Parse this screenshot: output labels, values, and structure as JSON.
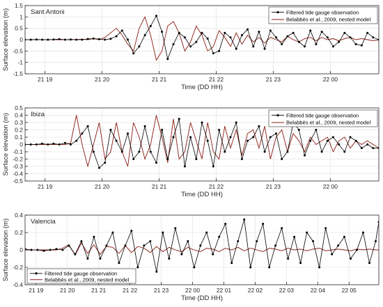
{
  "chart_data": [
    {
      "type": "line",
      "station": "Sant Antoni",
      "xlabel": "Time (DD HH)",
      "ylabel": "Surface elevation (m)",
      "xlim": [
        0,
        6.2
      ],
      "ylim": [
        -1.5,
        1.5
      ],
      "yticks": [
        -1.5,
        -1,
        -0.5,
        0,
        0.5,
        1,
        1.5
      ],
      "ytick_labels": [
        "-1.5",
        "-1",
        "-0.5",
        "0",
        "0.5",
        "1",
        "1.5"
      ],
      "xticks": [
        0.35,
        1.35,
        2.35,
        3.35,
        4.35,
        5.35
      ],
      "xtick_labels": [
        "21 19",
        "21 20",
        "21 21",
        "21 22",
        "21 23",
        "22 00"
      ],
      "legend_position": "top-right",
      "series": [
        {
          "name": "Filtered tide gauge observation",
          "style": "obs",
          "color": "#000000",
          "x": [
            0.0,
            0.1,
            0.2,
            0.3,
            0.4,
            0.5,
            0.6,
            0.7,
            0.8,
            0.9,
            1.0,
            1.1,
            1.2,
            1.3,
            1.4,
            1.5,
            1.6,
            1.7,
            1.8,
            1.9,
            2.0,
            2.1,
            2.2,
            2.3,
            2.4,
            2.5,
            2.6,
            2.7,
            2.8,
            2.9,
            3.0,
            3.1,
            3.2,
            3.3,
            3.4,
            3.5,
            3.6,
            3.7,
            3.8,
            3.9,
            4.0,
            4.1,
            4.2,
            4.3,
            4.4,
            4.5,
            4.6,
            4.7,
            4.8,
            4.9,
            5.0,
            5.1,
            5.2,
            5.3,
            5.4,
            5.5,
            5.6,
            5.7,
            5.8,
            5.9,
            6.0,
            6.1,
            6.2
          ],
          "y": [
            0.0,
            0.0,
            0.01,
            0.0,
            0.0,
            0.01,
            0.02,
            0.0,
            0.01,
            0.0,
            0.0,
            0.03,
            0.05,
            0.02,
            0.0,
            0.04,
            0.15,
            0.4,
            0.0,
            -0.6,
            -0.3,
            0.2,
            0.6,
            1.05,
            0.35,
            -0.85,
            -0.2,
            0.3,
            0.1,
            -0.3,
            -0.1,
            0.3,
            0.05,
            -0.6,
            -0.5,
            0.3,
            0.1,
            -0.4,
            0.2,
            0.45,
            -0.3,
            0.35,
            -0.4,
            0.4,
            0.1,
            -0.2,
            0.15,
            0.3,
            -0.1,
            -0.3,
            0.4,
            -0.2,
            0.35,
            0.1,
            -0.3,
            -0.1,
            0.3,
            0.1,
            -0.2,
            -0.25,
            0.3,
            0.1,
            0.0
          ]
        },
        {
          "name": "Belabbès et al., 2009, nested model",
          "style": "model",
          "color": "#8b1a10",
          "x": [
            0.0,
            0.1,
            0.2,
            0.3,
            0.4,
            0.5,
            0.6,
            0.7,
            0.8,
            0.9,
            1.0,
            1.1,
            1.2,
            1.3,
            1.4,
            1.5,
            1.6,
            1.7,
            1.8,
            1.9,
            2.0,
            2.1,
            2.2,
            2.3,
            2.4,
            2.5,
            2.6,
            2.7,
            2.8,
            2.9,
            3.0,
            3.1,
            3.2,
            3.3,
            3.4,
            3.5,
            3.6,
            3.7,
            3.8,
            3.9,
            4.0,
            4.1,
            4.2,
            4.3,
            4.4,
            4.5,
            4.6,
            4.7,
            4.8,
            4.9,
            5.0,
            5.1,
            5.2,
            5.3,
            5.4,
            5.5,
            5.6,
            5.7,
            5.8,
            5.9,
            6.0,
            6.1,
            6.2
          ],
          "y": [
            0.0,
            0.0,
            0.0,
            0.0,
            0.0,
            0.0,
            0.0,
            0.0,
            0.0,
            0.01,
            0.02,
            0.0,
            0.05,
            0.0,
            0.1,
            0.3,
            0.5,
            0.2,
            -0.2,
            -0.5,
            0.5,
            1.0,
            0.2,
            -0.9,
            -0.5,
            0.6,
            0.8,
            0.3,
            -0.5,
            -0.1,
            0.6,
            0.2,
            -0.5,
            -0.3,
            0.4,
            0.1,
            -0.3,
            0.3,
            -0.2,
            0.2,
            -0.1,
            0.1,
            -0.15,
            0.1,
            0.0,
            -0.1,
            0.15,
            0.0,
            -0.1,
            0.05,
            0.1,
            -0.05,
            0.1,
            0.0,
            0.05,
            -0.05,
            0.05,
            0.1,
            0.0,
            0.05,
            0.0,
            -0.05,
            0.0
          ]
        }
      ]
    },
    {
      "type": "line",
      "station": "Ibiza",
      "xlabel": "Time (DD HH)",
      "ylabel": "Surface elevation (m)",
      "xlim": [
        0,
        6.2
      ],
      "ylim": [
        -0.5,
        0.5
      ],
      "yticks": [
        -0.5,
        -0.4,
        -0.3,
        -0.2,
        -0.1,
        0,
        0.1,
        0.2,
        0.3,
        0.4,
        0.5
      ],
      "ytick_labels": [
        "-0.5",
        "-0.4",
        "-0.3",
        "-0.2",
        "-0.1",
        "0",
        "0.1",
        "0.2",
        "0.3",
        "0.4",
        "0.5"
      ],
      "xticks": [
        0.35,
        1.35,
        2.35,
        3.35,
        4.35,
        5.35
      ],
      "xtick_labels": [
        "21 19",
        "21 20",
        "21 21",
        "21 22",
        "21 23",
        "22 00"
      ],
      "legend_position": "top-right",
      "series": [
        {
          "name": "Filtered tide gauge observation",
          "style": "obs",
          "color": "#000000",
          "x": [
            0.0,
            0.1,
            0.2,
            0.3,
            0.4,
            0.5,
            0.6,
            0.7,
            0.8,
            0.9,
            1.0,
            1.1,
            1.2,
            1.3,
            1.4,
            1.5,
            1.6,
            1.7,
            1.8,
            1.9,
            2.0,
            2.1,
            2.2,
            2.3,
            2.4,
            2.5,
            2.6,
            2.7,
            2.8,
            2.9,
            3.0,
            3.1,
            3.2,
            3.3,
            3.4,
            3.5,
            3.6,
            3.7,
            3.8,
            3.9,
            4.0,
            4.1,
            4.2,
            4.3,
            4.4,
            4.5,
            4.6,
            4.7,
            4.8,
            4.9,
            5.0,
            5.1,
            5.2,
            5.3,
            5.4,
            5.5,
            5.6,
            5.7,
            5.8,
            5.9,
            6.0,
            6.1,
            6.2
          ],
          "y": [
            0.0,
            0.0,
            0.0,
            0.01,
            0.0,
            0.01,
            0.0,
            0.02,
            0.0,
            0.05,
            0.15,
            0.25,
            -0.1,
            -0.32,
            -0.25,
            0.2,
            0.05,
            -0.1,
            0.15,
            -0.2,
            -0.1,
            0.25,
            -0.1,
            -0.25,
            0.2,
            -0.2,
            0.1,
            0.35,
            -0.3,
            0.1,
            -0.2,
            0.3,
            0.05,
            -0.3,
            0.2,
            -0.1,
            0.1,
            0.3,
            -0.2,
            0.05,
            0.1,
            0.25,
            -0.1,
            0.1,
            0.15,
            -0.2,
            -0.1,
            0.3,
            0.2,
            -0.15,
            0.05,
            0.2,
            -0.1,
            0.05,
            0.1,
            0.0,
            -0.1,
            0.1,
            0.05,
            -0.05,
            0.0,
            -0.05,
            -0.05
          ]
        },
        {
          "name": "Belabbès et al., 2009, nested model",
          "style": "model",
          "color": "#8b1a10",
          "x": [
            0.0,
            0.1,
            0.2,
            0.3,
            0.4,
            0.5,
            0.6,
            0.7,
            0.8,
            0.9,
            1.0,
            1.1,
            1.2,
            1.3,
            1.4,
            1.5,
            1.6,
            1.7,
            1.8,
            1.9,
            2.0,
            2.1,
            2.2,
            2.3,
            2.4,
            2.5,
            2.6,
            2.7,
            2.8,
            2.9,
            3.0,
            3.1,
            3.2,
            3.3,
            3.4,
            3.5,
            3.6,
            3.7,
            3.8,
            3.9,
            4.0,
            4.1,
            4.2,
            4.3,
            4.4,
            4.5,
            4.6,
            4.7,
            4.8,
            4.9,
            5.0,
            5.1,
            5.2,
            5.3,
            5.4,
            5.5,
            5.6,
            5.7,
            5.8,
            5.9,
            6.0,
            6.1,
            6.2
          ],
          "y": [
            0.0,
            0.0,
            0.0,
            0.0,
            0.0,
            0.0,
            0.0,
            0.0,
            0.02,
            0.4,
            0.0,
            -0.3,
            0.0,
            0.3,
            -0.2,
            -0.1,
            0.3,
            -0.1,
            -0.3,
            0.3,
            0.1,
            -0.2,
            0.0,
            0.4,
            0.1,
            -0.25,
            0.35,
            -0.2,
            -0.1,
            0.3,
            0.05,
            -0.2,
            0.3,
            -0.1,
            -0.2,
            0.25,
            -0.05,
            0.2,
            -0.15,
            0.15,
            0.2,
            -0.05,
            0.25,
            -0.2,
            0.1,
            0.2,
            -0.1,
            0.15,
            0.05,
            -0.1,
            0.1,
            0.0,
            0.05,
            0.1,
            -0.1,
            0.05,
            0.1,
            -0.05,
            0.05,
            0.0,
            0.05,
            0.0,
            -0.05
          ]
        }
      ]
    },
    {
      "type": "line",
      "station": "Valencia",
      "xlabel": "Time (DD HH)",
      "ylabel": "Surface elevation (m)",
      "xlim": [
        0,
        11.3
      ],
      "ylim": [
        -0.4,
        0.4
      ],
      "yticks": [
        -0.4,
        -0.2,
        0,
        0.2,
        0.4
      ],
      "ytick_labels": [
        "-0.4",
        "-0.2",
        "0",
        "0.2",
        "0.4"
      ],
      "xticks": [
        0.35,
        1.35,
        2.35,
        3.35,
        4.35,
        5.35,
        6.35,
        7.35,
        8.35,
        9.35,
        10.35
      ],
      "xtick_labels": [
        "21 19",
        "21 20",
        "21 21",
        "21 22",
        "21 23",
        "22 00",
        "22 01",
        "22 02",
        "22 03",
        "22 04",
        "22 05"
      ],
      "legend_position": "bottom-left",
      "series": [
        {
          "name": "Filtered tide gauge observation",
          "style": "obs",
          "color": "#000000",
          "x": [
            0.0,
            0.2,
            0.4,
            0.6,
            0.8,
            1.0,
            1.2,
            1.4,
            1.6,
            1.8,
            2.0,
            2.2,
            2.4,
            2.6,
            2.8,
            3.0,
            3.2,
            3.4,
            3.6,
            3.8,
            4.0,
            4.2,
            4.4,
            4.6,
            4.8,
            5.0,
            5.2,
            5.4,
            5.6,
            5.8,
            6.0,
            6.2,
            6.4,
            6.6,
            6.8,
            7.0,
            7.2,
            7.4,
            7.6,
            7.8,
            8.0,
            8.2,
            8.4,
            8.6,
            8.8,
            9.0,
            9.2,
            9.4,
            9.6,
            9.8,
            10.0,
            10.2,
            10.4,
            10.6,
            10.8,
            11.0,
            11.2,
            11.3
          ],
          "y": [
            0.01,
            0.0,
            0.0,
            -0.01,
            0.0,
            0.01,
            0.0,
            0.05,
            -0.05,
            0.1,
            -0.1,
            0.15,
            -0.1,
            0.05,
            0.2,
            -0.15,
            0.05,
            0.22,
            -0.2,
            0.05,
            0.1,
            -0.25,
            0.2,
            -0.1,
            0.25,
            -0.05,
            0.1,
            -0.2,
            0.05,
            0.2,
            -0.05,
            0.15,
            0.3,
            -0.15,
            0.1,
            0.35,
            -0.2,
            0.1,
            0.3,
            -0.2,
            0.05,
            0.25,
            -0.1,
            0.15,
            -0.15,
            0.2,
            0.1,
            -0.2,
            0.25,
            -0.05,
            0.05,
            0.15,
            -0.1,
            0.0,
            0.2,
            -0.15,
            0.1,
            0.32
          ]
        },
        {
          "name": "Belabbès et al., 2009, nested model",
          "style": "model",
          "color": "#8b1a10",
          "x": [
            0.0,
            0.2,
            0.4,
            0.6,
            0.8,
            1.0,
            1.2,
            1.4,
            1.6,
            1.8,
            2.0,
            2.2,
            2.4,
            2.6,
            2.8,
            3.0,
            3.2,
            3.4,
            3.6,
            3.8,
            4.0,
            4.2,
            4.4,
            4.6,
            4.8,
            5.0,
            5.2,
            5.4,
            5.6,
            5.8,
            6.0,
            6.2,
            6.4,
            6.6,
            6.8,
            7.0,
            7.2,
            7.4,
            7.6,
            7.8,
            8.0,
            8.2,
            8.4,
            8.6,
            8.8,
            9.0,
            9.2,
            9.4,
            9.6,
            9.8,
            10.0,
            10.2,
            10.4,
            10.6,
            10.8,
            11.0,
            11.2,
            11.3
          ],
          "y": [
            0.0,
            0.0,
            0.0,
            0.0,
            0.0,
            0.0,
            0.02,
            0.06,
            -0.06,
            0.08,
            -0.04,
            0.06,
            -0.05,
            0.04,
            0.03,
            -0.04,
            0.05,
            -0.03,
            0.04,
            0.02,
            -0.03,
            0.04,
            -0.02,
            0.03,
            0.0,
            -0.02,
            0.03,
            0.0,
            -0.02,
            0.02,
            0.01,
            -0.02,
            0.02,
            0.0,
            0.03,
            -0.01,
            0.02,
            0.0,
            -0.02,
            0.02,
            0.01,
            -0.01,
            0.02,
            0.0,
            0.01,
            -0.01,
            0.01,
            0.02,
            -0.01,
            0.0,
            0.01,
            0.0,
            -0.01,
            0.01,
            0.0,
            0.01,
            0.0,
            0.0
          ]
        }
      ]
    }
  ]
}
